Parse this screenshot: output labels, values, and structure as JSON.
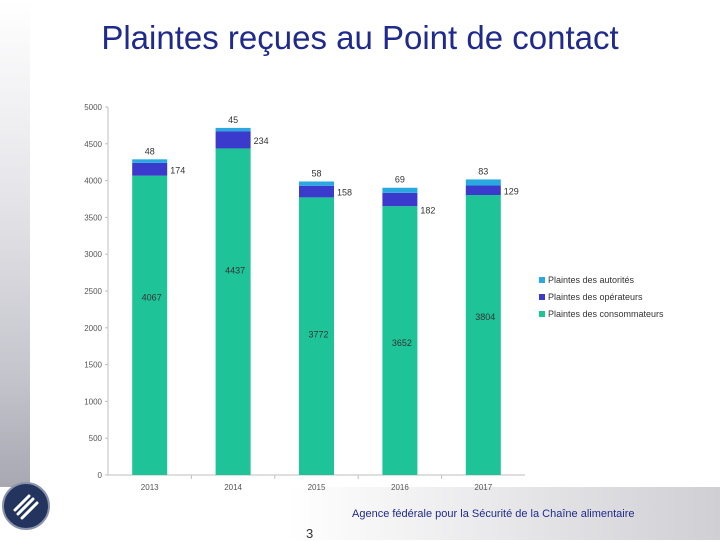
{
  "slide": {
    "title": "Plaintes reçues au Point de contact",
    "footer": "Agence fédérale pour la Sécurité de la Chaîne alimentaire",
    "page_number": "3"
  },
  "chart_data": {
    "type": "bar",
    "stacked": true,
    "categories": [
      "2013",
      "2014",
      "2015",
      "2016",
      "2017"
    ],
    "series": [
      {
        "name": "Plaintes des consommateurs",
        "color": "#1ec398",
        "values": [
          4067,
          4437,
          3772,
          3652,
          3804
        ]
      },
      {
        "name": "Plaintes des opérateurs",
        "color": "#3a3acc",
        "values": [
          174,
          234,
          158,
          182,
          129
        ]
      },
      {
        "name": "Plaintes des autorités",
        "color": "#2aa8e0",
        "values": [
          48,
          45,
          58,
          69,
          83
        ]
      }
    ],
    "ylim": [
      0,
      5000
    ],
    "yticks": [
      0,
      500,
      1000,
      1500,
      2000,
      2500,
      3000,
      3500,
      4000,
      4500,
      5000
    ],
    "legend_position": "right",
    "grid": false
  }
}
